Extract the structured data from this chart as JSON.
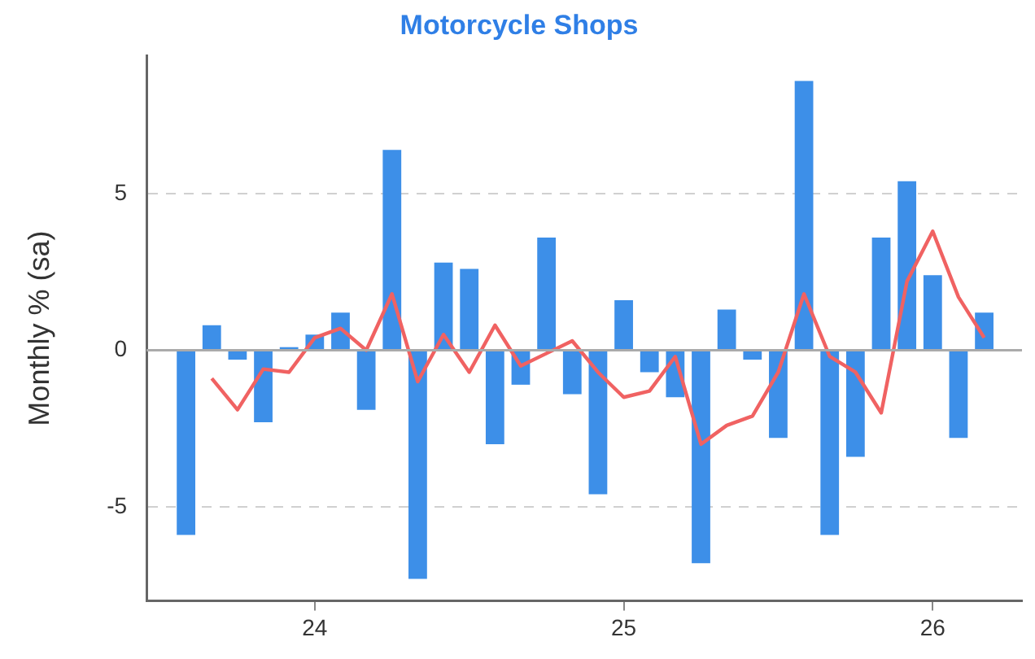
{
  "chart_data": {
    "type": "bar",
    "title": "Motorcycle Shops",
    "ylabel": "Monthly % (sa)",
    "x": [
      "2023-08",
      "2023-09",
      "2023-10",
      "2023-11",
      "2023-12",
      "2024-01",
      "2024-02",
      "2024-03",
      "2024-04",
      "2024-05",
      "2024-06",
      "2024-07",
      "2024-08",
      "2024-09",
      "2024-10",
      "2024-11",
      "2024-12",
      "2025-01",
      "2025-02",
      "2025-03",
      "2025-04",
      "2025-05",
      "2025-06",
      "2025-07",
      "2025-08",
      "2025-09",
      "2025-10",
      "2025-11",
      "2025-12",
      "2026-01",
      "2026-02",
      "2026-03"
    ],
    "series": [
      {
        "color": "#3d8fe8",
        "values": [
          -5.9,
          0.8,
          -0.3,
          -2.3,
          0.1,
          0.5,
          1.2,
          -1.9,
          6.4,
          -7.3,
          2.8,
          2.6,
          -3.0,
          -1.1,
          3.6,
          -1.4,
          -4.6,
          1.6,
          -0.7,
          -1.5,
          -6.8,
          1.3,
          -0.3,
          -2.8,
          8.6,
          -5.9,
          -3.4,
          3.6,
          5.4,
          2.4,
          -2.8,
          1.2
        ]
      },
      {
        "type": "line",
        "color": "#f06262",
        "values": [
          null,
          -0.9,
          -1.9,
          -0.6,
          -0.7,
          0.4,
          0.7,
          0.0,
          1.8,
          -1.0,
          0.5,
          -0.7,
          0.8,
          -0.5,
          -0.1,
          0.3,
          -0.7,
          -1.5,
          -1.3,
          -0.2,
          -3.0,
          -2.4,
          -2.1,
          -0.7,
          1.8,
          -0.2,
          -0.7,
          -2.0,
          2.2,
          3.8,
          1.7,
          0.4
        ]
      }
    ],
    "xlim": [
      "2023-06-15",
      "2026-04-15"
    ],
    "xticks": [
      {
        "value": "2024-01",
        "label": "24"
      },
      {
        "value": "2025-01",
        "label": "25"
      },
      {
        "value": "2026-01",
        "label": "26"
      }
    ],
    "ylim": [
      -8,
      9.4
    ],
    "yticks": [
      -5,
      0,
      5
    ],
    "grid": "y",
    "ref_lines": [
      {
        "axis": "y",
        "value": 0,
        "color": "#aaaaaa"
      }
    ]
  }
}
